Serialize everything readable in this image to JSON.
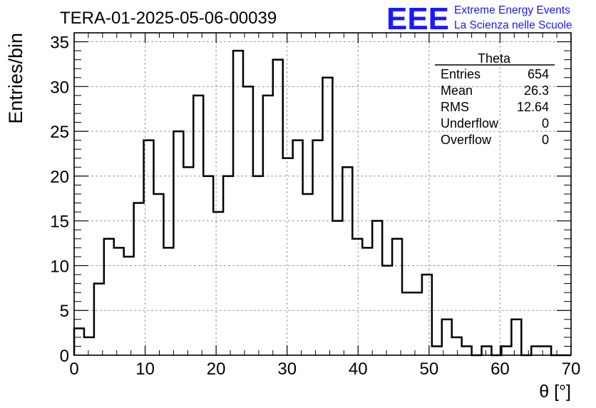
{
  "chart_data": {
    "type": "histogram",
    "title": "TERA-01-2025-05-06-00039",
    "xlabel": "θ [°]",
    "ylabel": "Entries/bin",
    "xlim": [
      0,
      70
    ],
    "ylim": [
      0,
      36
    ],
    "grid": true,
    "bin_edges_start": 0,
    "bin_width": 1.4,
    "values": [
      3,
      2,
      8,
      13,
      12,
      11,
      17,
      24,
      18,
      12,
      25,
      21,
      29,
      20,
      16,
      20,
      34,
      30,
      20,
      29,
      33,
      22,
      24,
      18,
      24,
      31,
      15,
      21,
      13,
      12,
      15,
      10,
      13,
      7,
      7,
      9,
      1,
      4,
      2,
      1,
      0,
      1,
      0,
      1,
      4,
      0,
      1,
      1,
      0,
      0
    ],
    "x_ticks": [
      "0",
      "10",
      "20",
      "30",
      "40",
      "50",
      "60",
      "70"
    ],
    "y_ticks": [
      "0",
      "5",
      "10",
      "15",
      "20",
      "25",
      "30",
      "35"
    ],
    "stats": {
      "title": "Theta",
      "rows": [
        {
          "label": "Entries",
          "value": "654"
        },
        {
          "label": "Mean",
          "value": "26.3"
        },
        {
          "label": "RMS",
          "value": "12.64"
        },
        {
          "label": "Underflow",
          "value": "0"
        },
        {
          "label": "Overflow",
          "value": "0"
        }
      ]
    }
  },
  "logo": {
    "mark": "EEE",
    "line1": "Extreme Energy Events",
    "line2": "La Scienza nelle Scuole",
    "color": "#1a1aff"
  }
}
